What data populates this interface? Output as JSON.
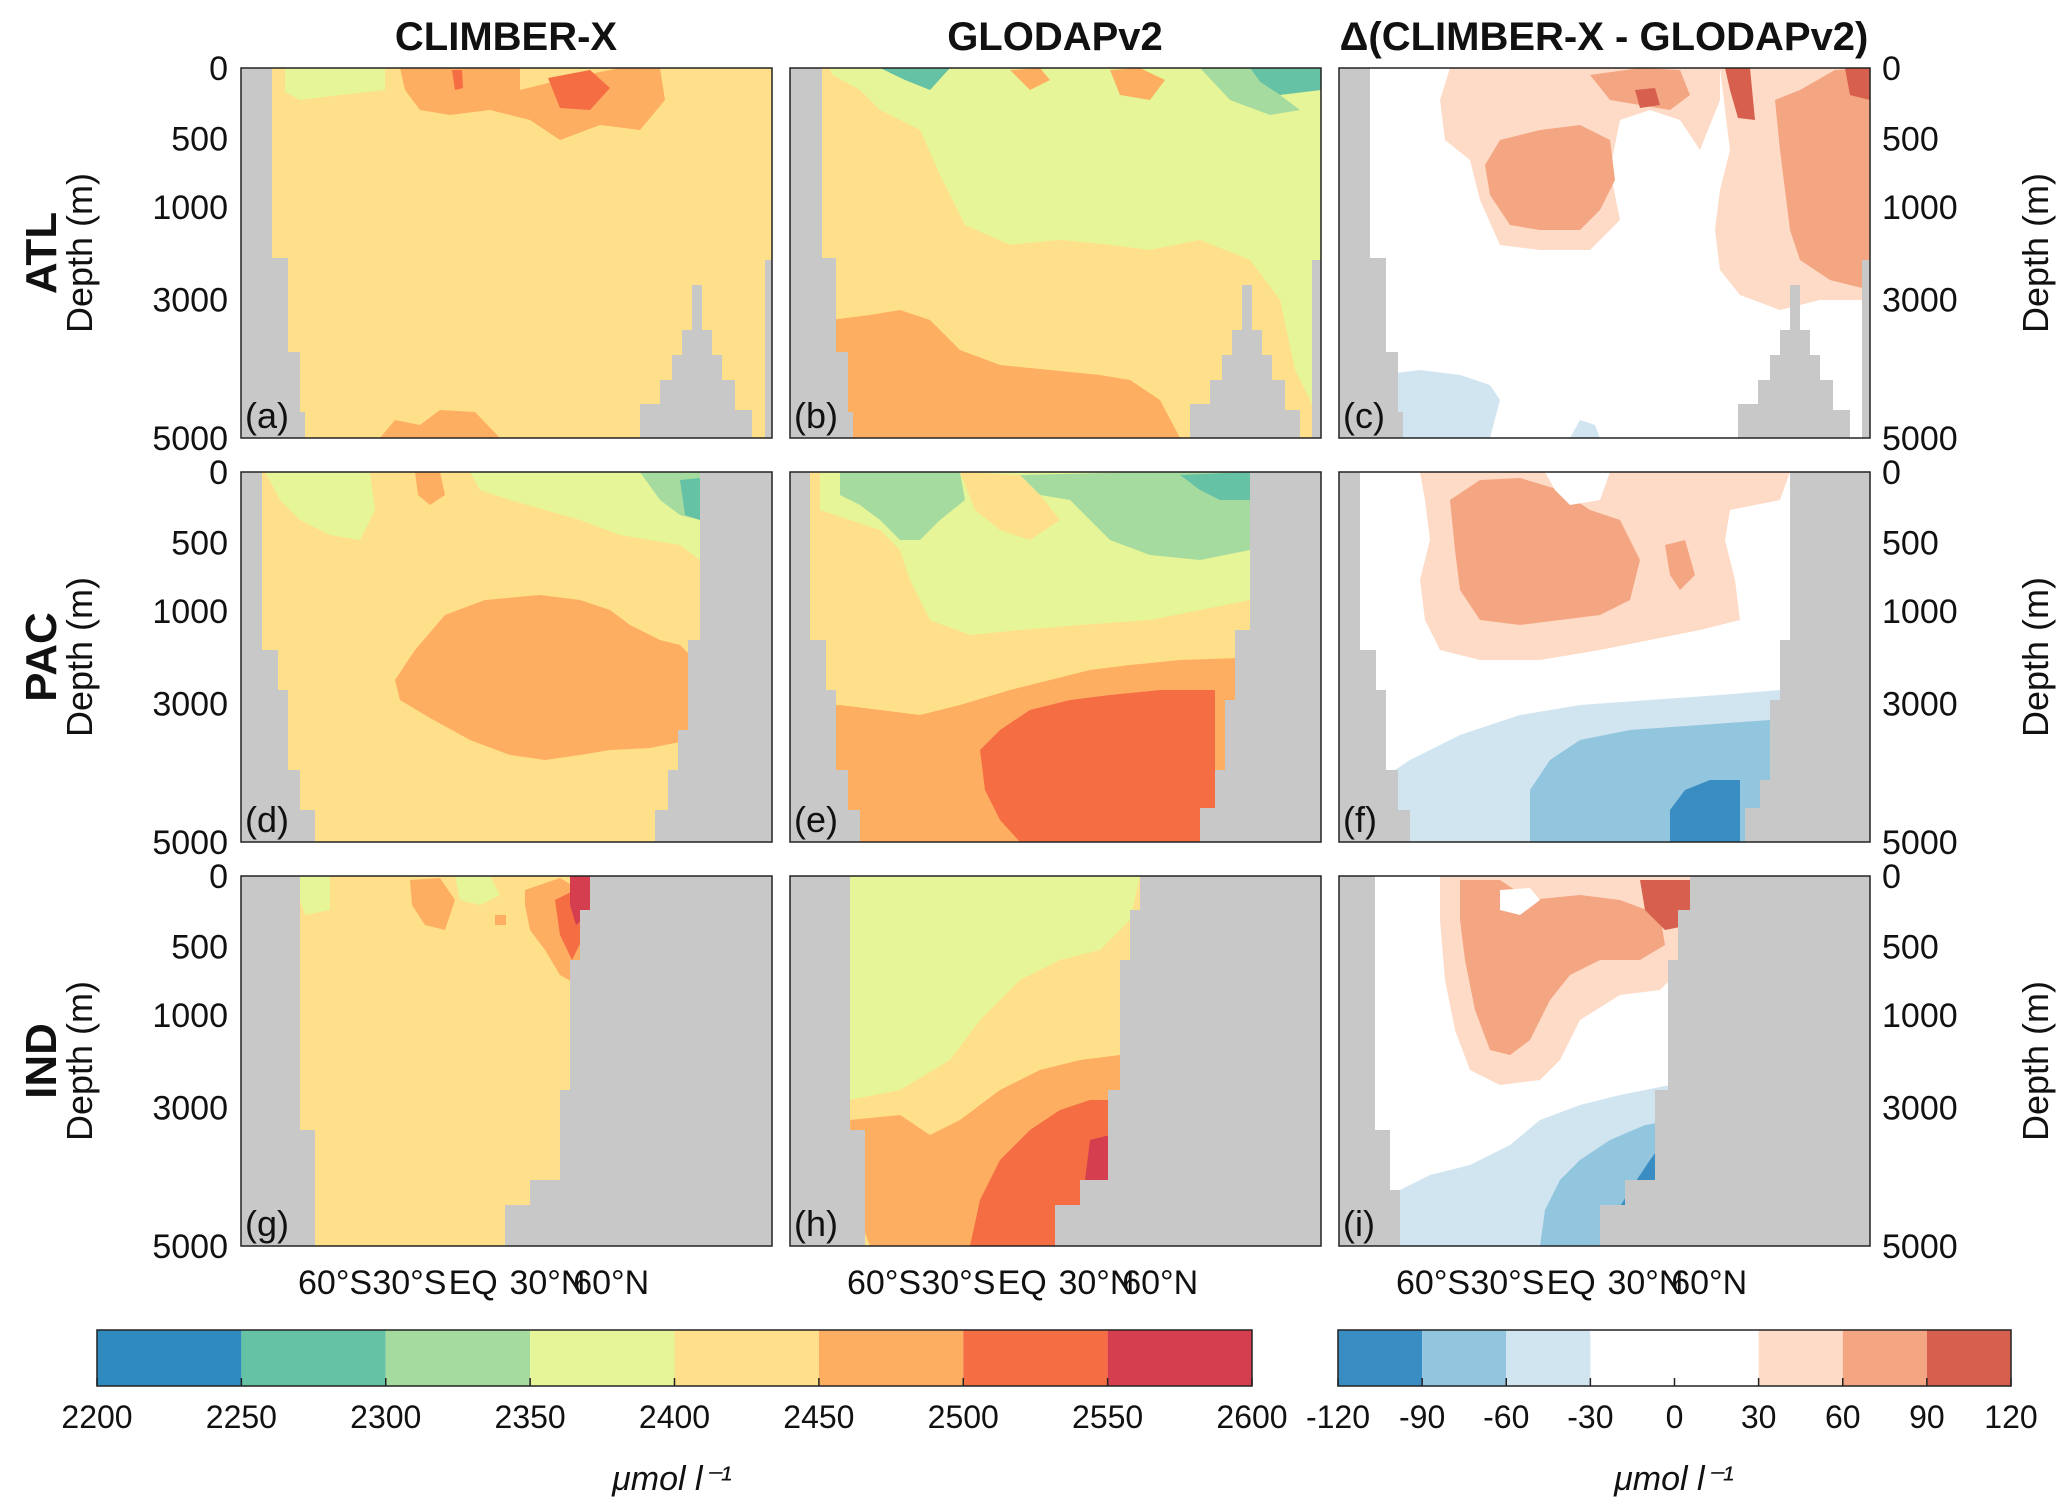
{
  "column_titles": [
    "CLIMBER-X",
    "GLODAPv2",
    "Δ(CLIMBER-X - GLODAPv2)"
  ],
  "row_titles": [
    "ATL",
    "PAC",
    "IND"
  ],
  "y_axis_label": "Depth (m)",
  "y_ticks": [
    "0",
    "500",
    "1000",
    "3000",
    "5000"
  ],
  "x_ticks": [
    "60°S",
    "30°S",
    "EQ",
    "30°N",
    "60°N"
  ],
  "panel_labels": [
    "(a)",
    "(b)",
    "(c)",
    "(d)",
    "(e)",
    "(f)",
    "(g)",
    "(h)",
    "(i)"
  ],
  "colors": {
    "land": "#c8c8c8",
    "absolute_scale": [
      "#2f8ac0",
      "#66c2a5",
      "#a6dba0",
      "#e6f598",
      "#fee08b",
      "#fdae61",
      "#f46d43",
      "#d53e4f"
    ],
    "difference_scale": [
      "#3a8dc2",
      "#92c5de",
      "#d1e5f0",
      "#ffffff",
      "#ffffff",
      "#fddbc7",
      "#f4a582",
      "#d6604d"
    ]
  },
  "colorbar_absolute": {
    "ticks": [
      "2200",
      "2250",
      "2300",
      "2350",
      "2400",
      "2450",
      "2500",
      "2550",
      "2600"
    ],
    "unit_label": "μmol l⁻¹"
  },
  "colorbar_difference": {
    "ticks": [
      "-120",
      "-90",
      "-60",
      "-30",
      "0",
      "30",
      "60",
      "90",
      "120"
    ],
    "unit_label": "μmol l⁻¹"
  },
  "chart_data": {
    "type": "heatmap",
    "description_variable": "depth-latitude sections",
    "x_axis": {
      "ticks": [
        "60°S",
        "30°S",
        "EQ",
        "30°N",
        "60°N"
      ],
      "range_deg": [
        -80,
        80
      ]
    },
    "y_axis": {
      "label": "Depth (m)",
      "ticks": [
        0,
        500,
        1000,
        3000,
        5000
      ],
      "inverted": true
    },
    "color_levels_absolute": [
      2200,
      2250,
      2300,
      2350,
      2400,
      2450,
      2500,
      2550,
      2600
    ],
    "color_levels_difference": [
      -120,
      -90,
      -60,
      -30,
      0,
      30,
      60,
      90,
      120
    ],
    "panels": [
      {
        "label": "(a)",
        "basin": "ATL",
        "source": "CLIMBER-X",
        "dominant_range": [
          2400,
          2450
        ],
        "max_range": [
          2500,
          2550
        ]
      },
      {
        "label": "(b)",
        "basin": "ATL",
        "source": "GLODAPv2",
        "dominant_range": [
          2350,
          2450
        ],
        "deep_range": [
          2450,
          2500
        ]
      },
      {
        "label": "(c)",
        "basin": "ATL",
        "source": "difference",
        "dominant_range": [
          -30,
          30
        ],
        "max_range": [
          90,
          120
        ]
      },
      {
        "label": "(d)",
        "basin": "PAC",
        "source": "CLIMBER-X",
        "dominant_range": [
          2400,
          2450
        ],
        "deep_range": [
          2450,
          2500
        ]
      },
      {
        "label": "(e)",
        "basin": "PAC",
        "source": "GLODAPv2",
        "dominant_range": [
          2350,
          2450
        ],
        "deep_range": [
          2500,
          2550
        ]
      },
      {
        "label": "(f)",
        "basin": "PAC",
        "source": "difference",
        "upper_range": [
          30,
          90
        ],
        "deep_range": [
          -120,
          -60
        ]
      },
      {
        "label": "(g)",
        "basin": "IND",
        "source": "CLIMBER-X",
        "dominant_range": [
          2400,
          2450
        ],
        "max_range": [
          2550,
          2600
        ]
      },
      {
        "label": "(h)",
        "basin": "IND",
        "source": "GLODAPv2",
        "dominant_range": [
          2350,
          2400
        ],
        "deep_range": [
          2500,
          2550
        ]
      },
      {
        "label": "(i)",
        "basin": "IND",
        "source": "difference",
        "upper_range": [
          30,
          90
        ],
        "deep_range": [
          -120,
          -60
        ]
      }
    ]
  }
}
